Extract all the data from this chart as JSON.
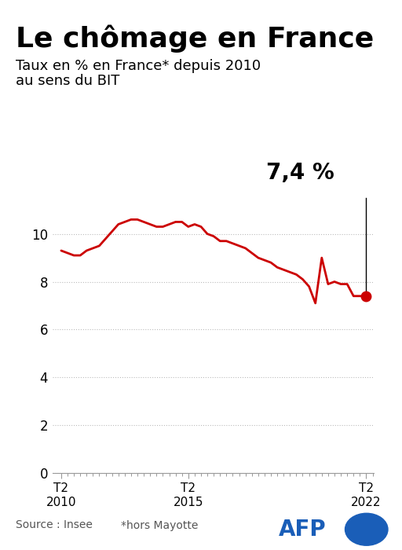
{
  "title": "Le chômage en France",
  "subtitle_line1": "Taux en % en France* depuis 2010",
  "subtitle_line2": "au sens du BIT",
  "annotation_value": "7,4 %",
  "source_text": "Source : Insee",
  "note_text": "*hors Mayotte",
  "afp_text": "AFP",
  "line_color": "#cc0000",
  "dot_color": "#cc0000",
  "annotation_color": "#000000",
  "background_color": "#ffffff",
  "grid_color": "#bbbbbb",
  "text_color": "#000000",
  "afp_color": "#1a5eb8",
  "ylim": [
    0,
    11.5
  ],
  "yticks": [
    0,
    2,
    4,
    6,
    8,
    10
  ],
  "title_fontsize": 26,
  "subtitle_fontsize": 13,
  "annotation_fontsize": 20,
  "x_data": [
    2010.25,
    2010.5,
    2010.75,
    2011.0,
    2011.25,
    2011.5,
    2011.75,
    2012.0,
    2012.25,
    2012.5,
    2012.75,
    2013.0,
    2013.25,
    2013.5,
    2013.75,
    2014.0,
    2014.25,
    2014.5,
    2014.75,
    2015.0,
    2015.25,
    2015.5,
    2015.75,
    2016.0,
    2016.25,
    2016.5,
    2016.75,
    2017.0,
    2017.25,
    2017.5,
    2017.75,
    2018.0,
    2018.25,
    2018.5,
    2018.75,
    2019.0,
    2019.25,
    2019.5,
    2019.75,
    2020.0,
    2020.25,
    2020.5,
    2020.75,
    2021.0,
    2021.25,
    2021.5,
    2021.75,
    2022.0,
    2022.25
  ],
  "y_data": [
    9.3,
    9.2,
    9.1,
    9.1,
    9.3,
    9.4,
    9.5,
    9.8,
    10.1,
    10.4,
    10.5,
    10.6,
    10.6,
    10.5,
    10.4,
    10.3,
    10.3,
    10.4,
    10.5,
    10.5,
    10.3,
    10.4,
    10.3,
    10.0,
    9.9,
    9.7,
    9.7,
    9.6,
    9.5,
    9.4,
    9.2,
    9.0,
    8.9,
    8.8,
    8.6,
    8.5,
    8.4,
    8.3,
    8.1,
    7.8,
    7.1,
    9.0,
    7.9,
    8.0,
    7.9,
    7.9,
    7.4,
    7.4,
    7.4
  ],
  "xticks": [
    2010.25,
    2015.25,
    2022.25
  ],
  "xtick_labels": [
    "T2\n2010",
    "T2\n2015",
    "T2\n2022"
  ],
  "top_bar_color": "#000000",
  "spine_color": "#999999"
}
